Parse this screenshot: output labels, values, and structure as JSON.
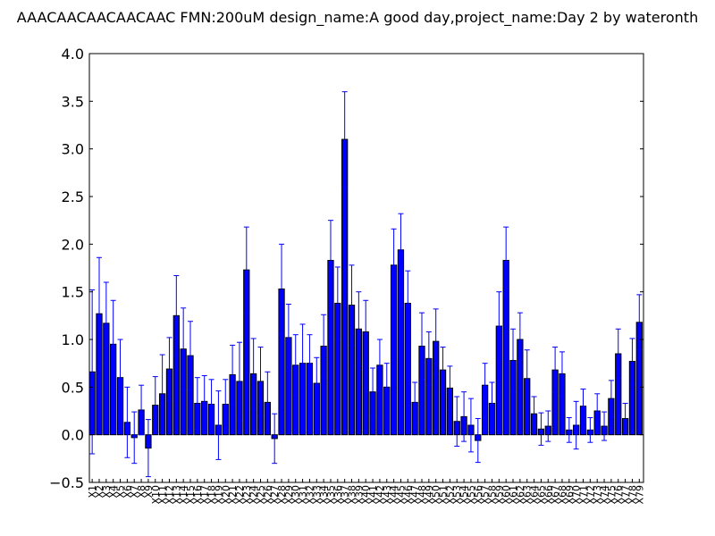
{
  "chart_data": {
    "type": "bar",
    "title": "AAACAACAACAACAAC  FMN:200uM  design_name:A good day,project_name:Day 2 by wateronth",
    "xlabel": "",
    "ylabel": "",
    "ylim": [
      -0.5,
      4.0
    ],
    "yticks": [
      "−0.5",
      "0.0",
      "0.5",
      "1.0",
      "1.5",
      "2.0",
      "2.5",
      "3.0",
      "3.5",
      "4.0"
    ],
    "grid": false,
    "bar_color": "#0000ff",
    "error_color": "#0000ff",
    "categories": [
      "X1",
      "X2",
      "X3",
      "X4",
      "X5",
      "X6",
      "X7",
      "X8",
      "X9",
      "X10",
      "X11",
      "X12",
      "X13",
      "X14",
      "X15",
      "X16",
      "X17",
      "X18",
      "X19",
      "X20",
      "X21",
      "X22",
      "X23",
      "X24",
      "X25",
      "X26",
      "X27",
      "X28",
      "X29",
      "X30",
      "X31",
      "X32",
      "X33",
      "X34",
      "X35",
      "X36",
      "X37",
      "X38",
      "X39",
      "X40",
      "X41",
      "X42",
      "X43",
      "X44",
      "X45",
      "X46",
      "X47",
      "X48",
      "X49",
      "X50",
      "X51",
      "X52",
      "X53",
      "X54",
      "X55",
      "X56",
      "X57",
      "X58",
      "X59",
      "X60",
      "X61",
      "X62",
      "X63",
      "X64",
      "X65",
      "X66",
      "X67",
      "X68",
      "X69",
      "X70",
      "X71",
      "X72",
      "X73",
      "X74",
      "X75",
      "X76",
      "X77",
      "X78",
      "X79"
    ],
    "values": [
      0.66,
      1.27,
      1.17,
      0.95,
      0.6,
      0.13,
      -0.03,
      0.26,
      -0.14,
      0.31,
      0.43,
      0.69,
      1.25,
      0.9,
      0.83,
      0.33,
      0.35,
      0.32,
      0.1,
      0.32,
      0.63,
      0.56,
      1.73,
      0.64,
      0.56,
      0.34,
      -0.04,
      1.53,
      1.02,
      0.73,
      0.75,
      0.75,
      0.54,
      0.93,
      1.83,
      1.38,
      3.1,
      1.36,
      1.11,
      1.08,
      0.45,
      0.73,
      0.5,
      1.78,
      1.94,
      1.38,
      0.34,
      0.93,
      0.8,
      0.98,
      0.68,
      0.49,
      0.14,
      0.19,
      0.1,
      -0.06,
      0.52,
      0.33,
      1.14,
      1.83,
      0.78,
      1.0,
      0.59,
      0.22,
      0.06,
      0.09,
      0.68,
      0.64,
      0.05,
      0.1,
      0.3,
      0.05,
      0.25,
      0.09,
      0.38,
      0.85,
      0.17,
      0.77,
      1.18
    ],
    "errors": [
      0.86,
      0.59,
      0.43,
      0.46,
      0.4,
      0.37,
      0.27,
      0.26,
      0.3,
      0.3,
      0.41,
      0.33,
      0.42,
      0.43,
      0.36,
      0.27,
      0.27,
      0.26,
      0.36,
      0.26,
      0.31,
      0.41,
      0.45,
      0.37,
      0.36,
      0.32,
      0.26,
      0.47,
      0.35,
      0.32,
      0.41,
      0.3,
      0.27,
      0.33,
      0.42,
      0.38,
      0.5,
      0.42,
      0.39,
      0.33,
      0.25,
      0.27,
      0.25,
      0.38,
      0.38,
      0.34,
      0.21,
      0.35,
      0.28,
      0.34,
      0.24,
      0.23,
      0.26,
      0.26,
      0.28,
      0.23,
      0.23,
      0.22,
      0.36,
      0.35,
      0.33,
      0.28,
      0.3,
      0.18,
      0.17,
      0.16,
      0.24,
      0.23,
      0.13,
      0.25,
      0.18,
      0.13,
      0.18,
      0.15,
      0.19,
      0.26,
      0.16,
      0.24,
      0.29
    ]
  }
}
